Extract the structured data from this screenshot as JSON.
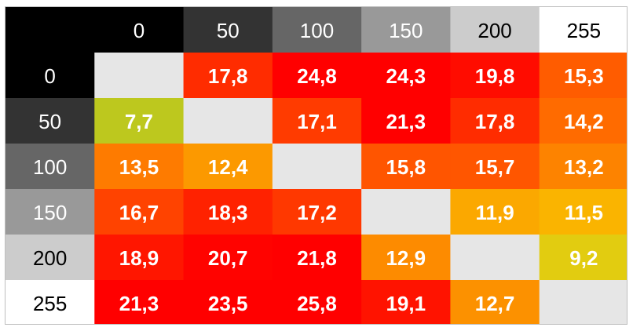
{
  "chart_data": {
    "type": "heatmap",
    "x_labels": [
      "0",
      "50",
      "100",
      "150",
      "200",
      "255"
    ],
    "y_labels": [
      "0",
      "50",
      "100",
      "150",
      "200",
      "255"
    ],
    "values": [
      [
        null,
        "17,8",
        "24,8",
        "24,3",
        "19,8",
        "15,3"
      ],
      [
        "7,7",
        null,
        "17,1",
        "21,3",
        "17,8",
        "14,2"
      ],
      [
        "13,5",
        "12,4",
        null,
        "15,8",
        "15,7",
        "13,2"
      ],
      [
        "16,7",
        "18,3",
        "17,2",
        null,
        "11,9",
        "11,5"
      ],
      [
        "18,9",
        "20,7",
        "21,8",
        "12,9",
        null,
        "9,2"
      ],
      [
        "21,3",
        "23,5",
        "25,8",
        "19,1",
        "12,7",
        null
      ]
    ],
    "header_colors": [
      "#000000",
      "#333333",
      "#666666",
      "#999999",
      "#cccccc",
      "#ffffff"
    ],
    "header_text_colors": [
      "#ffffff",
      "#ffffff",
      "#ffffff",
      "#ffffff",
      "#000000",
      "#000000"
    ],
    "empty_cell_color": "#e6e6e6",
    "value_text_color": "#ffffff"
  }
}
